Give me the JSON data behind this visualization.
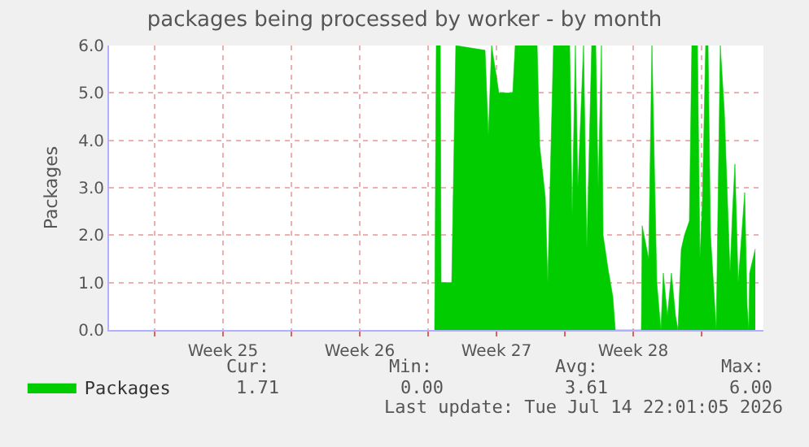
{
  "chart_data": {
    "type": "area",
    "title": "packages being processed by worker - by month",
    "ylabel": "Packages",
    "x": [
      "2026-06-29T08:00",
      "2026-06-29T10:00",
      "2026-06-29T15:00",
      "2026-06-29T16:00",
      "2026-06-30T05:00",
      "2026-06-30T10:00",
      "2026-07-01T22:00",
      "2026-07-02T02:00",
      "2026-07-02T06:00",
      "2026-07-02T15:00",
      "2026-07-03T08:00",
      "2026-07-03T11:00",
      "2026-07-04T14:00",
      "2026-07-04T17:00",
      "2026-07-05T00:00",
      "2026-07-05T03:00",
      "2026-07-05T10:00",
      "2026-07-06T06:00",
      "2026-07-06T09:00",
      "2026-07-06T13:00",
      "2026-07-06T16:00",
      "2026-07-06T23:00",
      "2026-07-07T03:00",
      "2026-07-07T09:00",
      "2026-07-07T14:00",
      "2026-07-07T17:00",
      "2026-07-07T21:00",
      "2026-07-07T23:00",
      "2026-07-08T05:00",
      "2026-07-08T11:00",
      "2026-07-08T14:00",
      "2026-07-09T22:00",
      "2026-07-09T23:00",
      "2026-07-10T07:00",
      "2026-07-10T11:00",
      "2026-07-10T17:00",
      "2026-07-10T22:00",
      "2026-07-11T01:00",
      "2026-07-11T06:00",
      "2026-07-11T11:00",
      "2026-07-11T16:00",
      "2026-07-11T19:00",
      "2026-07-11T23:00",
      "2026-07-12T03:00",
      "2026-07-12T09:00",
      "2026-07-12T12:00",
      "2026-07-12T19:00",
      "2026-07-12T22:00",
      "2026-07-13T01:00",
      "2026-07-13T05:00",
      "2026-07-13T08:00",
      "2026-07-13T11:00",
      "2026-07-13T18:00",
      "2026-07-13T23:00",
      "2026-07-14T04:00",
      "2026-07-14T11:00",
      "2026-07-14T14:00",
      "2026-07-14T17:00",
      "2026-07-14T21:00",
      "2026-07-15T05:00",
      "2026-07-15T08:00",
      "2026-07-15T10:00",
      "2026-07-15T11:00",
      "2026-07-15T18:00"
    ],
    "series": [
      {
        "name": "Packages",
        "color": "#00cc00",
        "values": [
          0,
          6,
          6,
          1,
          1,
          6,
          5.9,
          4.1,
          6,
          5.0,
          5.0,
          6,
          6,
          3.9,
          2.8,
          1.0,
          6,
          6,
          2.4,
          6,
          3,
          6,
          1.7,
          6,
          6,
          3,
          6,
          2,
          1.3,
          0.7,
          0,
          0,
          2.2,
          1.5,
          6,
          1.0,
          0,
          1.2,
          0.3,
          1.2,
          0.3,
          0,
          1.7,
          2.0,
          2.3,
          6,
          6,
          1.5,
          2.7,
          6,
          6,
          2,
          0,
          6,
          4.6,
          1.2,
          2.5,
          3.5,
          1,
          2.9,
          0.5,
          0,
          1.2,
          1.71
        ]
      }
    ],
    "xlim": [
      "2026-06-12T16:00",
      "2026-07-16T04:00"
    ],
    "xticks": [
      {
        "value": "2026-06-15T00:00",
        "label": null
      },
      {
        "value": "2026-06-18T12:00",
        "label": "Week 25"
      },
      {
        "value": "2026-06-22T00:00",
        "label": null
      },
      {
        "value": "2026-06-25T12:00",
        "label": "Week 26"
      },
      {
        "value": "2026-06-29T00:00",
        "label": null
      },
      {
        "value": "2026-07-02T12:00",
        "label": "Week 27"
      },
      {
        "value": "2026-07-06T00:00",
        "label": null
      },
      {
        "value": "2026-07-09T12:00",
        "label": "Week 28"
      },
      {
        "value": "2026-07-13T00:00",
        "label": null
      }
    ],
    "ylim": [
      0,
      6
    ],
    "yticks": [
      {
        "value": 0,
        "label": "0.0"
      },
      {
        "value": 1,
        "label": "1.0"
      },
      {
        "value": 2,
        "label": "2.0"
      },
      {
        "value": 3,
        "label": "3.0"
      },
      {
        "value": 4,
        "label": "4.0"
      },
      {
        "value": 5,
        "label": "5.0"
      },
      {
        "value": 6,
        "label": "6.0"
      }
    ],
    "grid": true,
    "legend": "bottom left",
    "marker": "none",
    "line_style": "solid",
    "annotations": [
      "Cur:",
      "Min:",
      "Avg:",
      "Max:",
      "1.71",
      "0.00",
      "3.61",
      "6.00",
      "Last update: Tue Jul 14 22:01:05 2026"
    ]
  }
}
